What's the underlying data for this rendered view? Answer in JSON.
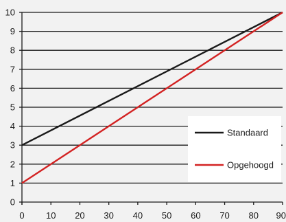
{
  "chart_data": {
    "type": "line",
    "title": "",
    "xlabel": "",
    "ylabel": "",
    "xlim": [
      0,
      90
    ],
    "ylim": [
      0,
      10
    ],
    "x_ticks": [
      0,
      10,
      20,
      30,
      40,
      50,
      60,
      70,
      80,
      90
    ],
    "y_ticks": [
      0,
      1,
      2,
      3,
      4,
      5,
      6,
      7,
      8,
      9,
      10
    ],
    "grid": "horizontal",
    "legend_position": "bottom-right",
    "series": [
      {
        "name": "Standaard",
        "color": "#1a1a1a",
        "x": [
          0,
          90
        ],
        "y": [
          3,
          10
        ]
      },
      {
        "name": "Opgehoogd",
        "color": "#d32222",
        "x": [
          0,
          90
        ],
        "y": [
          1,
          10
        ]
      }
    ]
  },
  "colors": {
    "background": "#f2f2f2",
    "grid": "#1a1a1a",
    "axis": "#1a1a1a",
    "legend_box": "#ffffff"
  }
}
